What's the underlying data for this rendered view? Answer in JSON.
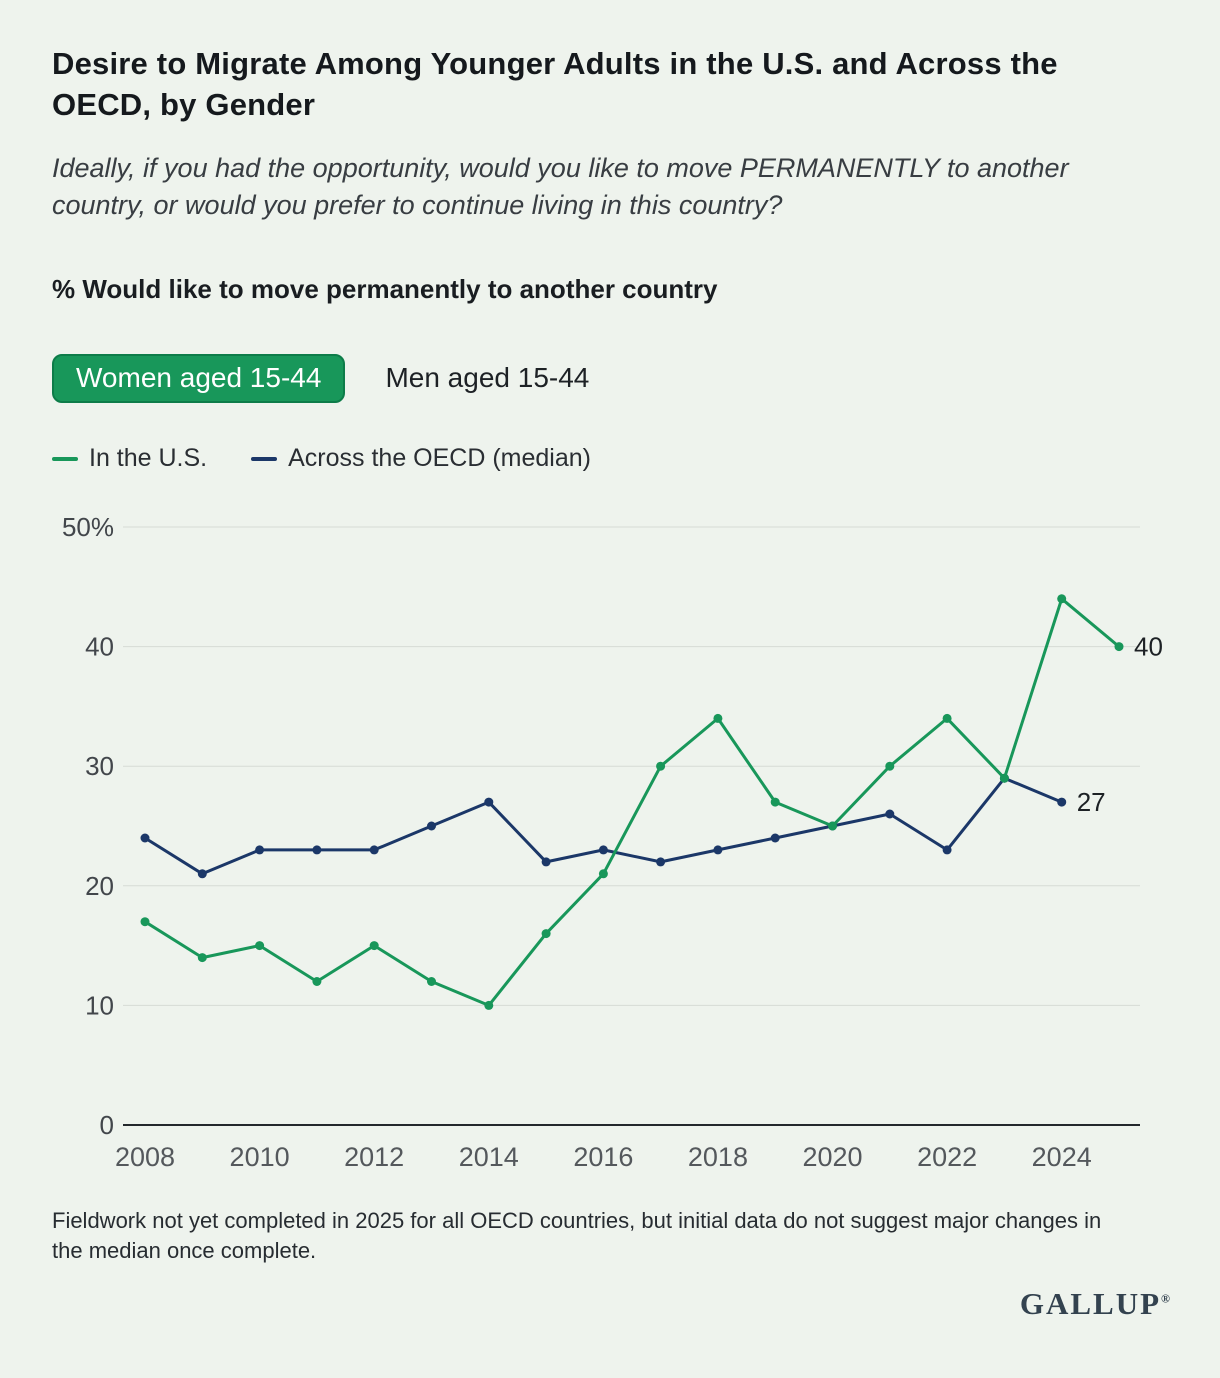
{
  "header": {
    "title": "Desire to Migrate Among Younger Adults in the U.S. and Across the OECD, by Gender",
    "question": "Ideally, if you had the opportunity, would you like to move PERMANENTLY to another country, or would you prefer to continue living in this country?",
    "measure_label": "% Would like to move permanently to another country"
  },
  "tabs": [
    {
      "label": "Women aged 15-44",
      "selected": true
    },
    {
      "label": "Men aged 15-44",
      "selected": false
    }
  ],
  "legend": [
    {
      "label": "In the U.S.",
      "color": "#18975a"
    },
    {
      "label": "Across the OECD (median)",
      "color": "#1b3768"
    }
  ],
  "chart_data": {
    "type": "line",
    "title": "% Would like to move permanently to another country",
    "x": [
      2008,
      2009,
      2010,
      2011,
      2012,
      2013,
      2014,
      2015,
      2016,
      2017,
      2018,
      2019,
      2020,
      2021,
      2022,
      2023,
      2024,
      2025
    ],
    "series": [
      {
        "name": "In the U.S.",
        "color": "#18975a",
        "values": [
          17,
          14,
          15,
          12,
          15,
          12,
          10,
          16,
          21,
          30,
          34,
          27,
          25,
          30,
          34,
          29,
          44,
          40
        ],
        "end_label": "40"
      },
      {
        "name": "Across the OECD (median)",
        "color": "#1b3768",
        "values": [
          24,
          21,
          23,
          23,
          23,
          25,
          27,
          22,
          23,
          22,
          23,
          24,
          25,
          26,
          23,
          29,
          27
        ],
        "end_label": "27"
      }
    ],
    "ylim": [
      0,
      50
    ],
    "yticks": [
      0,
      10,
      20,
      30,
      40,
      50
    ],
    "ytick_labels": [
      "0",
      "10",
      "20",
      "30",
      "40",
      "50%"
    ],
    "xtick_labels": [
      "2008",
      "2010",
      "2012",
      "2014",
      "2016",
      "2018",
      "2020",
      "2022",
      "2024"
    ],
    "grid": true,
    "legend_position": "top-left"
  },
  "footer": {
    "note": "Fieldwork not yet completed in 2025 for all OECD countries, but initial data do not suggest major changes in the median once complete.",
    "brand": "GALLUP",
    "registered": "®"
  },
  "colors": {
    "background": "#eef3ed",
    "us_green": "#18975a",
    "oecd_navy": "#1b3768",
    "gridline": "#d6dbd5",
    "axis": "#23282c"
  }
}
